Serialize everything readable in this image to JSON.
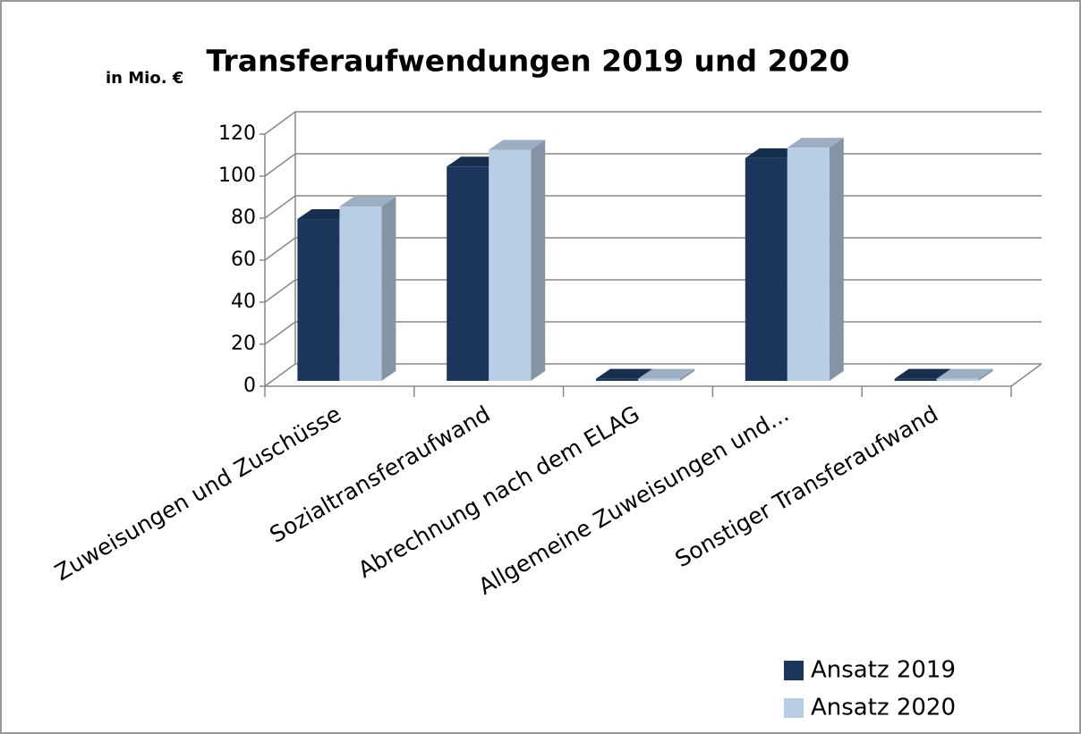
{
  "chart_data": {
    "type": "bar",
    "title": "Transferaufwendungen 2019 und 2020",
    "y_axis_label": "in Mio. €",
    "categories": [
      "Zuweisungen und Zuschüsse",
      "Sozialtransferaufwand",
      "Abrechnung nach dem ELAG",
      "Allgemeine Zuweisungen und...",
      "Sonstiger Transferaufwand"
    ],
    "series": [
      {
        "name": "Ansatz 2019",
        "color": "#1b365d",
        "values": [
          77,
          102,
          1,
          106,
          1
        ]
      },
      {
        "name": "Ansatz 2020",
        "color": "#b9cde5",
        "values": [
          83,
          110,
          1,
          111,
          1
        ]
      }
    ],
    "ylim": [
      0,
      120
    ],
    "yticks": [
      0,
      20,
      40,
      60,
      80,
      100,
      120
    ],
    "grid": true,
    "legend": "bottom-right"
  }
}
